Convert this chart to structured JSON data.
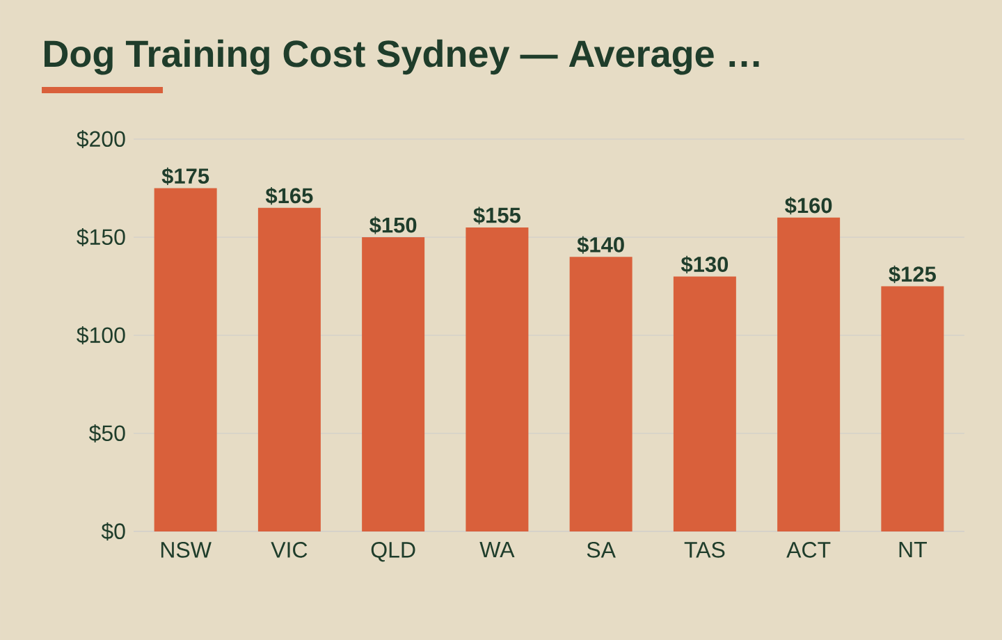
{
  "chart_data": {
    "type": "bar",
    "title": "Dog Training Cost Sydney — Average …",
    "categories": [
      "NSW",
      "VIC",
      "QLD",
      "WA",
      "SA",
      "TAS",
      "ACT",
      "NT"
    ],
    "values": [
      175,
      165,
      150,
      155,
      140,
      130,
      160,
      125
    ],
    "value_labels": [
      "$175",
      "$165",
      "$150",
      "$155",
      "$140",
      "$130",
      "$160",
      "$125"
    ],
    "color": "#d9603b",
    "ylim": [
      0,
      200
    ],
    "yticks": [
      {
        "value": 0,
        "label": "$0"
      },
      {
        "value": 50,
        "label": "$50"
      },
      {
        "value": 100,
        "label": "$100"
      },
      {
        "value": 150,
        "label": "$150"
      },
      {
        "value": 200,
        "label": "$200"
      }
    ],
    "grid": "y"
  }
}
